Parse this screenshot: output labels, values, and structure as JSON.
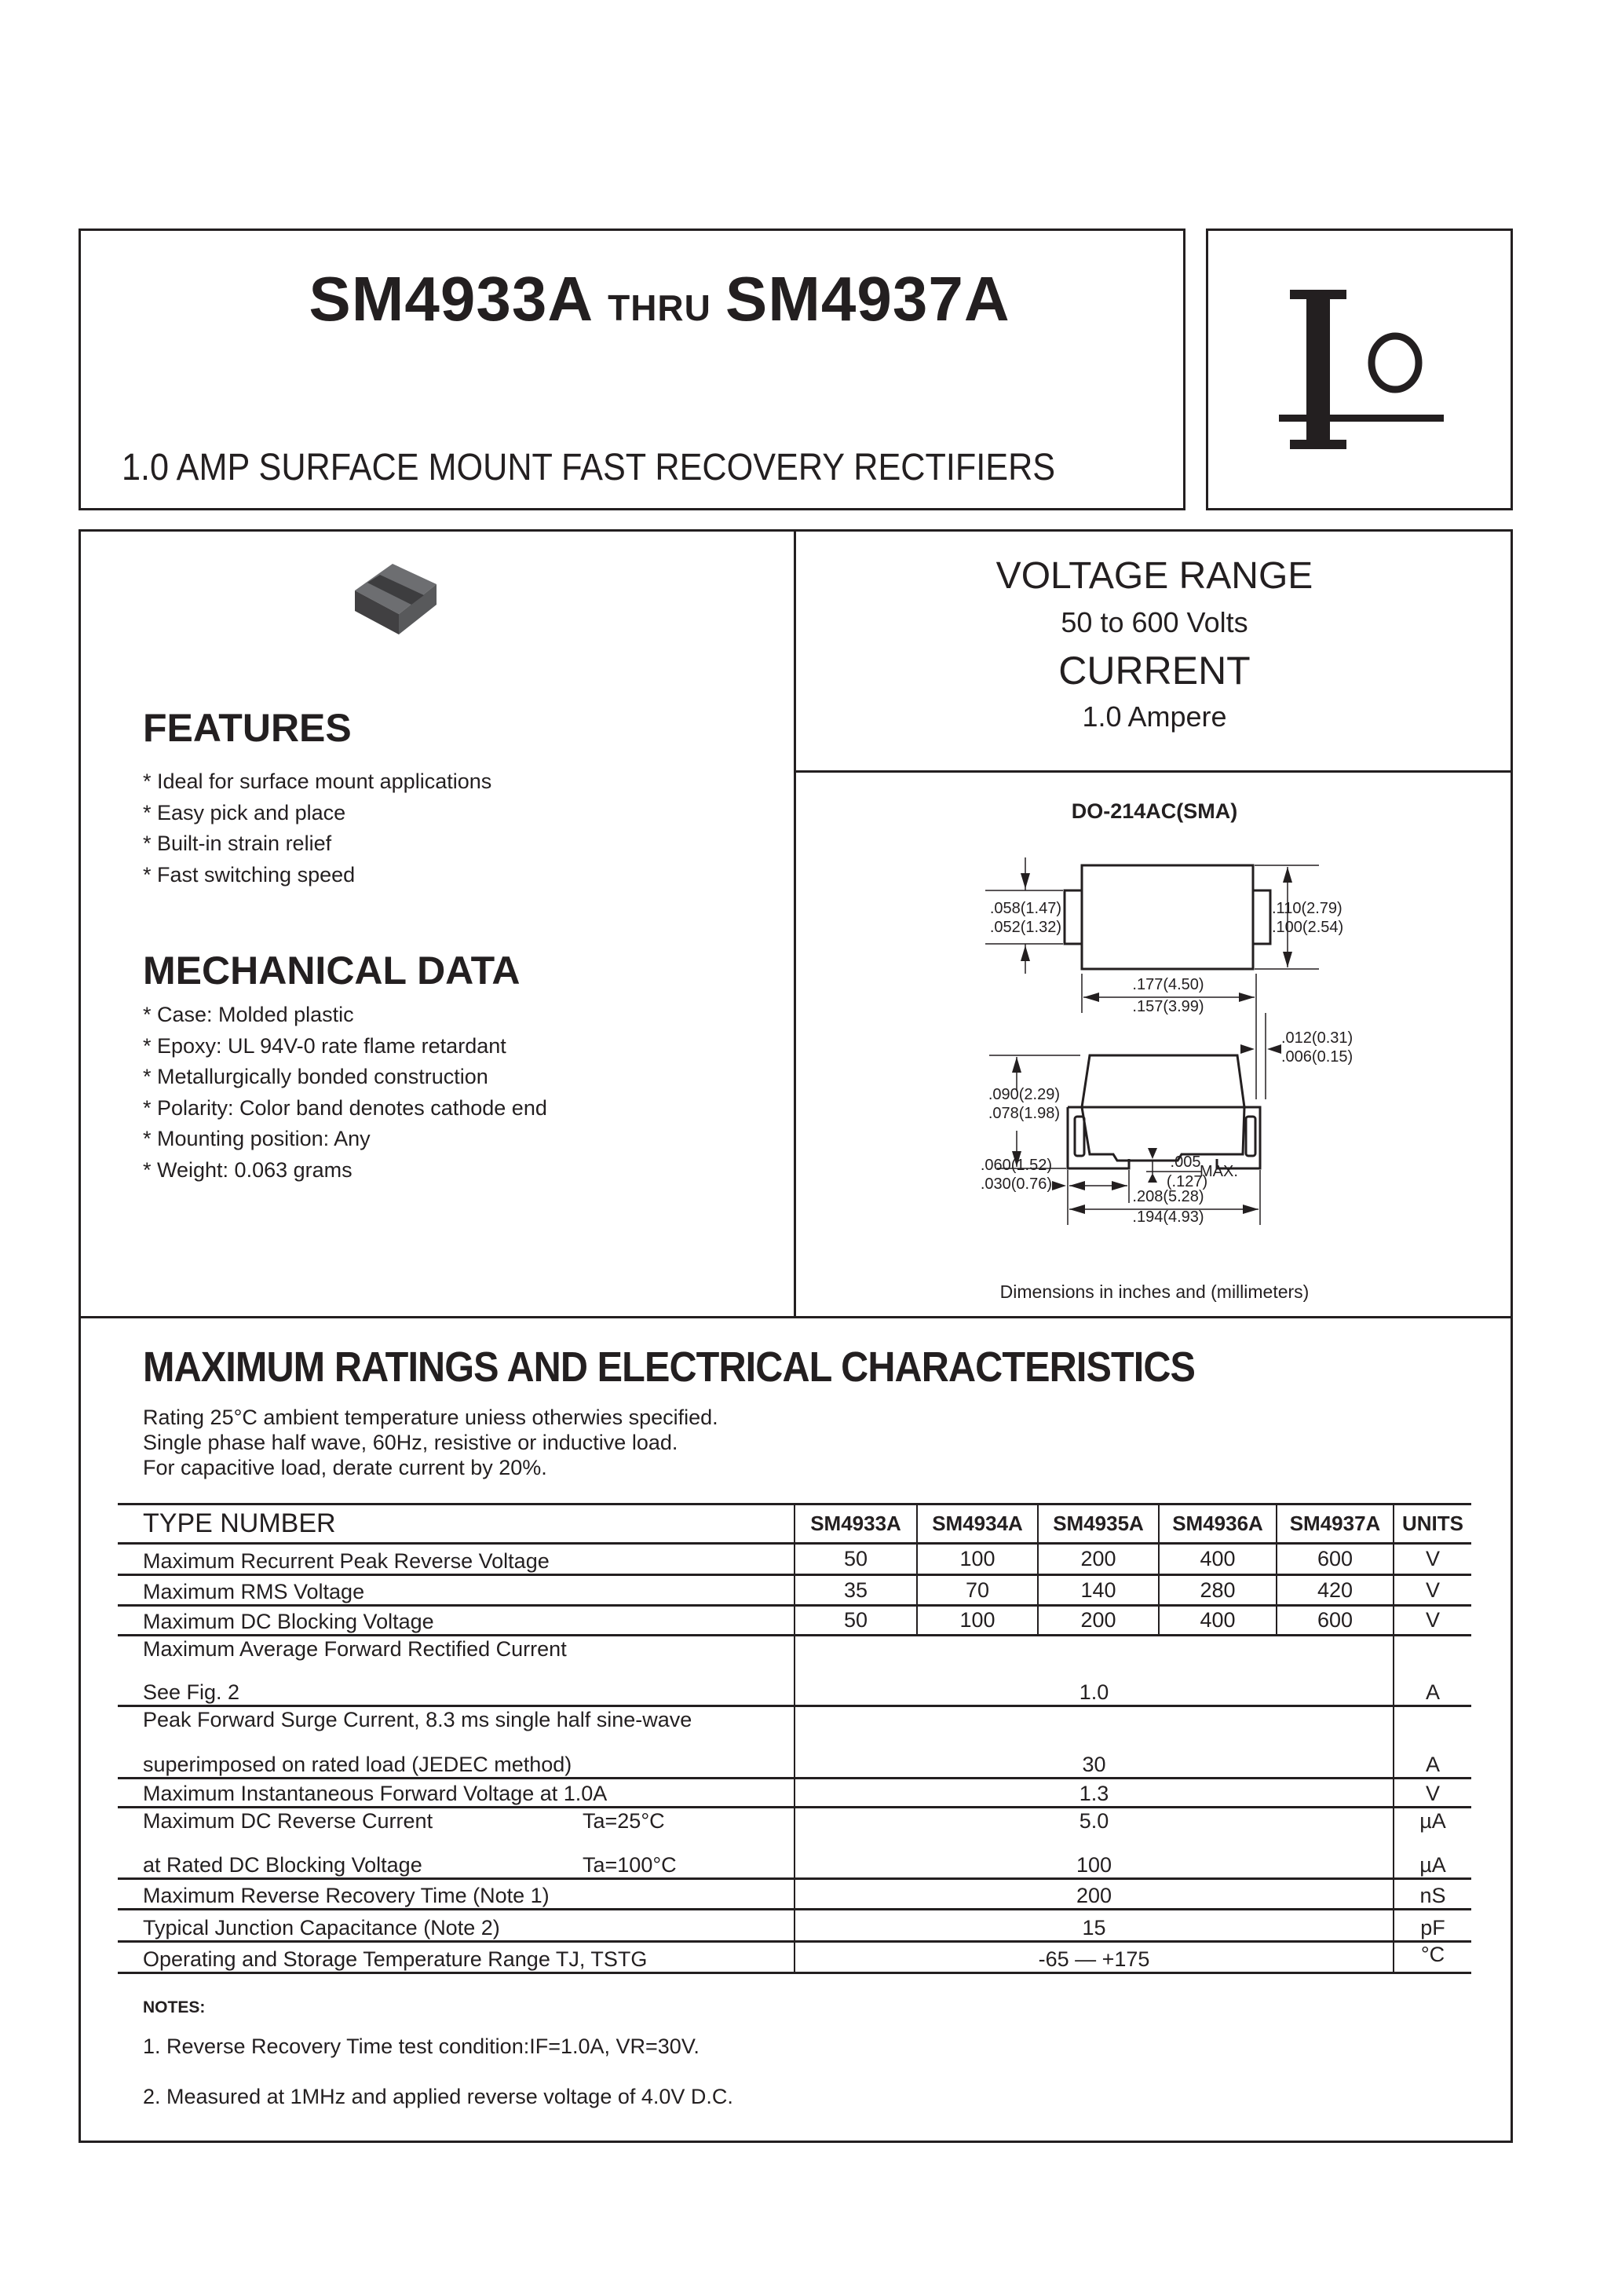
{
  "header": {
    "part_start": "SM4933A",
    "thru": "THRU",
    "part_end": "SM4937A",
    "subtitle": "1.0 AMP SURFACE MOUNT FAST RECOVERY RECTIFIERS",
    "logo_text": "Io"
  },
  "ratings_box": {
    "voltage_label": "VOLTAGE RANGE",
    "voltage_value": "50 to 600 Volts",
    "current_label": "CURRENT",
    "current_value": "1.0 Ampere"
  },
  "features": {
    "title": "FEATURES",
    "items": [
      "* Ideal for surface mount applications",
      "* Easy pick and place",
      "* Built-in strain relief",
      "* Fast switching speed"
    ]
  },
  "mechanical": {
    "title": "MECHANICAL DATA",
    "items": [
      "* Case: Molded plastic",
      "* Epoxy: UL 94V-0 rate flame retardant",
      "* Metallurgically bonded construction",
      "* Polarity: Color band denotes cathode end",
      "* Mounting position: Any",
      "* Weight: 0.063 grams"
    ]
  },
  "package": {
    "name": "DO-214AC(SMA)",
    "dims": {
      "tab_h_max": ".058(1.47)",
      "tab_h_min": ".052(1.32)",
      "body_h_max": ".110(2.79)",
      "body_h_min": ".100(2.54)",
      "body_w_max": ".177(4.50)",
      "body_w_min": ".157(3.99)",
      "lead_t_max": ".012(0.31)",
      "lead_t_min": ".006(0.15)",
      "height_max": ".090(2.29)",
      "height_min": ".078(1.98)",
      "foot_max": ".060(1.52)",
      "foot_min": ".030(0.76)",
      "standoff_in": ".005",
      "standoff_mm": "(.127)",
      "standoff_note": "MAX.",
      "overall_max": ".208(5.28)",
      "overall_min": ".194(4.93)"
    },
    "caption": "Dimensions in inches and (millimeters)"
  },
  "ratings": {
    "title": "MAXIMUM RATINGS AND ELECTRICAL CHARACTERISTICS",
    "notes_lines": [
      "Rating 25°C ambient temperature uniess otherwies specified.",
      "Single phase half wave, 60Hz, resistive or inductive load.",
      "For capacitive load, derate current by 20%."
    ],
    "table": {
      "type_header": "TYPE NUMBER",
      "parts": [
        "SM4933A",
        "SM4934A",
        "SM4935A",
        "SM4936A",
        "SM4937A"
      ],
      "units_header": "UNITS",
      "rows_per_part": [
        {
          "label": "Maximum Recurrent Peak Reverse Voltage",
          "values": [
            "50",
            "100",
            "200",
            "400",
            "600"
          ],
          "unit": "V"
        },
        {
          "label": "Maximum RMS Voltage",
          "values": [
            "35",
            "70",
            "140",
            "280",
            "420"
          ],
          "unit": "V"
        },
        {
          "label": "Maximum DC Blocking Voltage",
          "values": [
            "50",
            "100",
            "200",
            "400",
            "600"
          ],
          "unit": "V"
        }
      ],
      "avg_current": {
        "label1": "Maximum Average Forward Rectified Current",
        "label2": "See Fig. 2",
        "value": "1.0",
        "unit": "A"
      },
      "surge": {
        "label1": "Peak Forward Surge Current, 8.3 ms single half sine-wave",
        "label2": "superimposed on rated load (JEDEC method)",
        "value": "30",
        "unit": "A"
      },
      "vf": {
        "label": "Maximum Instantaneous Forward Voltage at 1.0A",
        "value": "1.3",
        "unit": "V"
      },
      "ir": {
        "label1": "Maximum DC Reverse Current",
        "cond1": "Ta=25°C",
        "value1": "5.0",
        "unit1": "µA",
        "label2": "at Rated DC Blocking Voltage",
        "cond2": "Ta=100°C",
        "value2": "100",
        "unit2": "µA"
      },
      "trr": {
        "label": "Maximum Reverse Recovery Time (Note 1)",
        "value": "200",
        "unit": "nS"
      },
      "cj": {
        "label": "Typical Junction Capacitance (Note 2)",
        "value": "15",
        "unit": "pF"
      },
      "temp": {
        "label": "Operating and Storage Temperature Range TJ, TSTG",
        "value": "-65 — +175",
        "unit": "°C"
      }
    }
  },
  "notes": {
    "title": "NOTES:",
    "items": [
      "1. Reverse Recovery Time test condition:IF=1.0A, VR=30V.",
      "2. Measured at 1MHz and applied reverse voltage of 4.0V D.C."
    ]
  }
}
